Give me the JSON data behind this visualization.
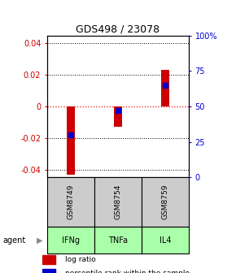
{
  "title": "GDS498 / 23078",
  "samples": [
    "GSM8749",
    "GSM8754",
    "GSM8759"
  ],
  "agents": [
    "IFNg",
    "TNFa",
    "IL4"
  ],
  "log_ratios": [
    -0.043,
    -0.013,
    0.023
  ],
  "percentile_ranks_pct": [
    30,
    47,
    65
  ],
  "bar_color": "#cc0000",
  "dot_color": "#0000cc",
  "ylim": [
    -0.045,
    0.045
  ],
  "y_ticks_left": [
    -0.04,
    -0.02,
    0.0,
    0.02,
    0.04
  ],
  "y_ticks_right_pct": [
    0,
    25,
    50,
    75,
    100
  ],
  "ytick_labels_left": [
    "-0.04",
    "-0.02",
    "0",
    "0.02",
    "0.04"
  ],
  "ytick_labels_right": [
    "0",
    "25",
    "50",
    "75",
    "100%"
  ],
  "left_axis_color": "#cc0000",
  "right_axis_color": "#0000cc",
  "sample_box_color": "#cccccc",
  "agent_box_color": "#aaffaa",
  "bar_width": 0.18,
  "dot_size": 5,
  "legend_log_ratio": "log ratio",
  "legend_percentile": "percentile rank within the sample",
  "agent_label": "agent"
}
